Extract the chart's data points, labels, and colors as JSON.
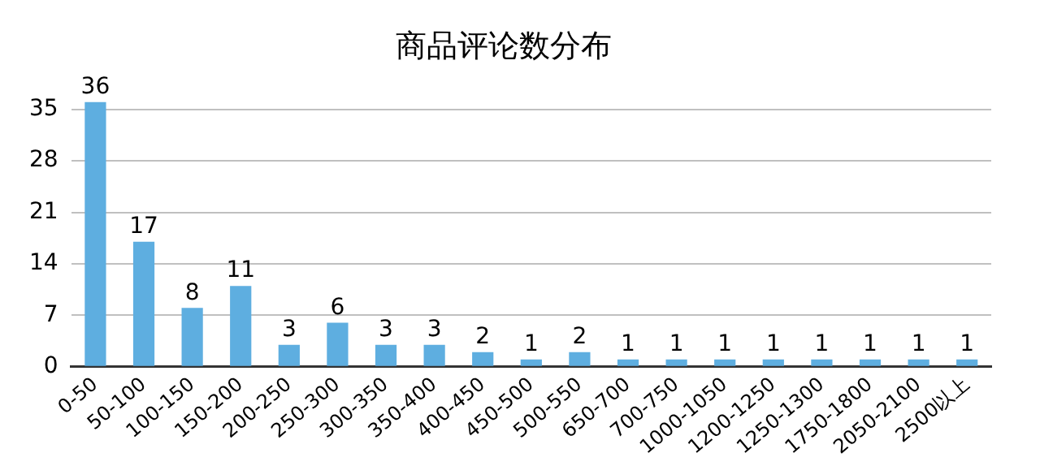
{
  "chart_data": {
    "type": "bar",
    "title": "商品评论数分布",
    "categories": [
      "0-50",
      "50-100",
      "100-150",
      "150-200",
      "200-250",
      "250-300",
      "300-350",
      "350-400",
      "400-450",
      "450-500",
      "500-550",
      "650-700",
      "700-750",
      "1000-1050",
      "1200-1250",
      "1250-1300",
      "1750-1800",
      "2050-2100",
      "2500以上"
    ],
    "values": [
      36,
      17,
      8,
      11,
      3,
      6,
      3,
      3,
      2,
      1,
      2,
      1,
      1,
      1,
      1,
      1,
      1,
      1,
      1
    ],
    "color": "#5eaee0",
    "ylim": [
      0,
      36
    ],
    "yticks": [
      0,
      7,
      14,
      21,
      28,
      35
    ],
    "grid": "y",
    "data_labels": true,
    "legend": false
  }
}
